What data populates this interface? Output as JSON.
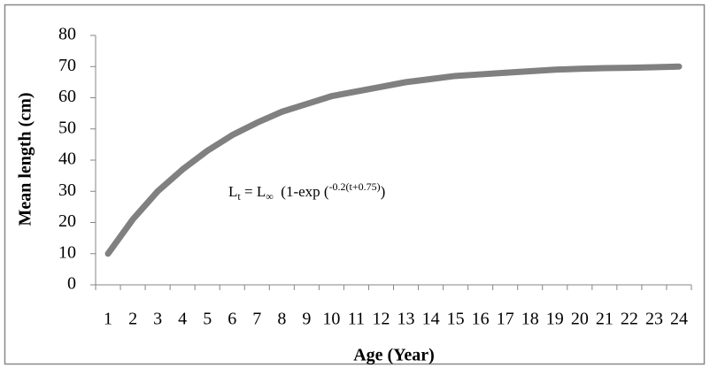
{
  "chart_data": {
    "type": "line",
    "y_label": "Mean length (cm)",
    "x_label": "Age (Year)",
    "annotation": [
      "L",
      "t",
      " = L",
      "∞",
      "  (1-exp (",
      "-0.2(t+0.75)",
      ")"
    ],
    "categories": [
      "1",
      "2",
      "3",
      "4",
      "5",
      "6",
      "7",
      "8",
      "9",
      "10",
      "11",
      "12",
      "13",
      "14",
      "15",
      "16",
      "17",
      "18",
      "19",
      "20",
      "21",
      "22",
      "23",
      "24"
    ],
    "values": [
      10,
      21,
      30,
      37,
      43,
      48,
      52,
      55.5,
      58,
      60.5,
      62,
      63.5,
      65,
      66,
      67,
      67.5,
      68,
      68.5,
      69,
      69.3,
      69.5,
      69.6,
      69.8,
      70
    ],
    "color": "#808080",
    "ylim": [
      0,
      80
    ],
    "yticks": [
      0,
      10,
      20,
      30,
      40,
      50,
      60,
      70,
      80
    ],
    "grid": false
  }
}
